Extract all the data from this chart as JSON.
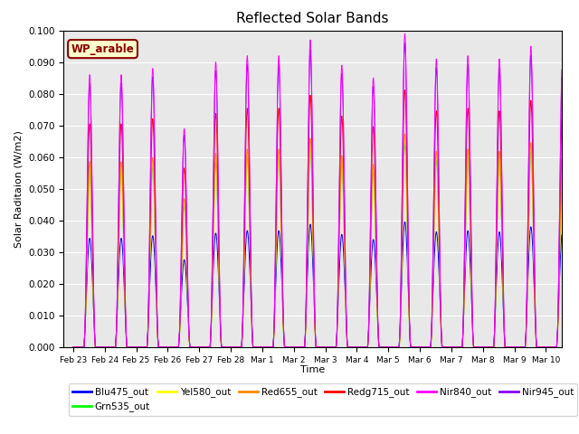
{
  "title": "Reflected Solar Bands",
  "xlabel": "Time",
  "ylabel": "Solar Raditaion (W/m2)",
  "annotation_text": "WP_arable",
  "ylim": [
    0.0,
    0.1
  ],
  "background_color": "#e8e8e8",
  "series": [
    {
      "name": "Blu475_out",
      "color": "#0000ff",
      "scale": 0.4
    },
    {
      "name": "Grn535_out",
      "color": "#00ff00",
      "scale": 0.65
    },
    {
      "name": "Yel580_out",
      "color": "#ffff00",
      "scale": 0.67
    },
    {
      "name": "Red655_out",
      "color": "#ff8800",
      "scale": 0.68
    },
    {
      "name": "Redg715_out",
      "color": "#ff0000",
      "scale": 0.82
    },
    {
      "name": "Nir840_out",
      "color": "#ff00ff",
      "scale": 1.0
    },
    {
      "name": "Nir945_out",
      "color": "#8800ff",
      "scale": 0.97
    }
  ],
  "tick_labels": [
    "Feb 23",
    "Feb 24",
    "Feb 25",
    "Feb 26",
    "Feb 27",
    "Feb 28",
    "Mar 1",
    "Mar 2",
    "Mar 3",
    "Mar 4",
    "Mar 5",
    "Mar 6",
    "Mar 7",
    "Mar 8",
    "Mar 9",
    "Mar 10"
  ],
  "peak_nir840": [
    0.086,
    0.086,
    0.088,
    0.069,
    0.09,
    0.092,
    0.092,
    0.097,
    0.089,
    0.085,
    0.099,
    0.091,
    0.092,
    0.091,
    0.095,
    0.091
  ],
  "day_start": 0.33,
  "day_end": 0.72,
  "pts_per_day": 288
}
